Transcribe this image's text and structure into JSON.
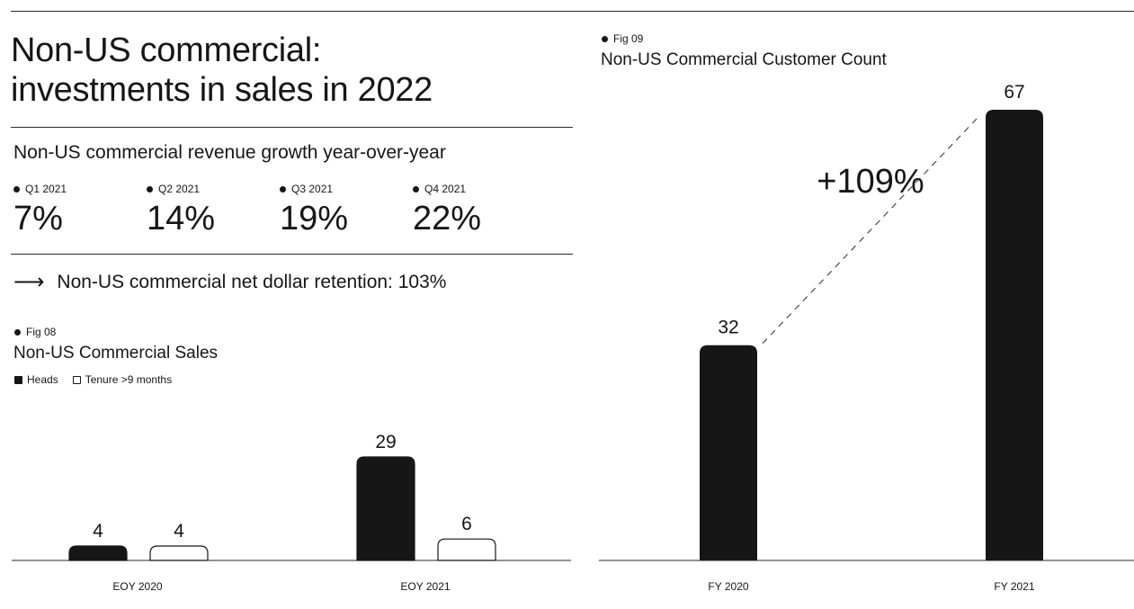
{
  "top_rule": "",
  "headline": {
    "line1": "Non-US commercial:",
    "line2": "investments in sales in 2022"
  },
  "growth": {
    "title": "Non-US commercial revenue growth year-over-year",
    "quarters": [
      {
        "label": "Q1 2021",
        "value": "7%"
      },
      {
        "label": "Q2 2021",
        "value": "14%"
      },
      {
        "label": "Q3 2021",
        "value": "19%"
      },
      {
        "label": "Q4 2021",
        "value": "22%"
      }
    ]
  },
  "retention": {
    "arrow": "⟶",
    "text": "Non-US commercial net dollar retention: 103%"
  },
  "fig08": {
    "fig_label": "Fig 08",
    "legend": [
      {
        "label": "Heads",
        "color": "#161616"
      },
      {
        "label": "Tenure >9 months",
        "color": "#ffffff"
      }
    ]
  },
  "fig09": {
    "fig_label": "Fig 09",
    "change_label": "+109%"
  },
  "chart_data": [
    {
      "type": "bar",
      "title": "Non-US Commercial Sales",
      "categories": [
        "EOY 2020",
        "EOY 2021"
      ],
      "series": [
        {
          "name": "Heads",
          "values": [
            4,
            29
          ],
          "labels": [
            "4",
            "29"
          ],
          "color": "#161616"
        },
        {
          "name": "Tenure >9 months",
          "values": [
            4,
            6
          ],
          "labels": [
            "4",
            "6"
          ],
          "color": "#ffffff"
        }
      ],
      "ylim": [
        0,
        29
      ],
      "legend": "top-left",
      "grid": false
    },
    {
      "type": "bar",
      "title": "Non-US Commercial Customer Count",
      "categories": [
        "FY 2020",
        "FY 2021"
      ],
      "values": [
        32,
        67
      ],
      "labels": [
        "32",
        "67"
      ],
      "ylim": [
        0,
        67
      ],
      "grid": false,
      "annotation": "+109%"
    }
  ]
}
